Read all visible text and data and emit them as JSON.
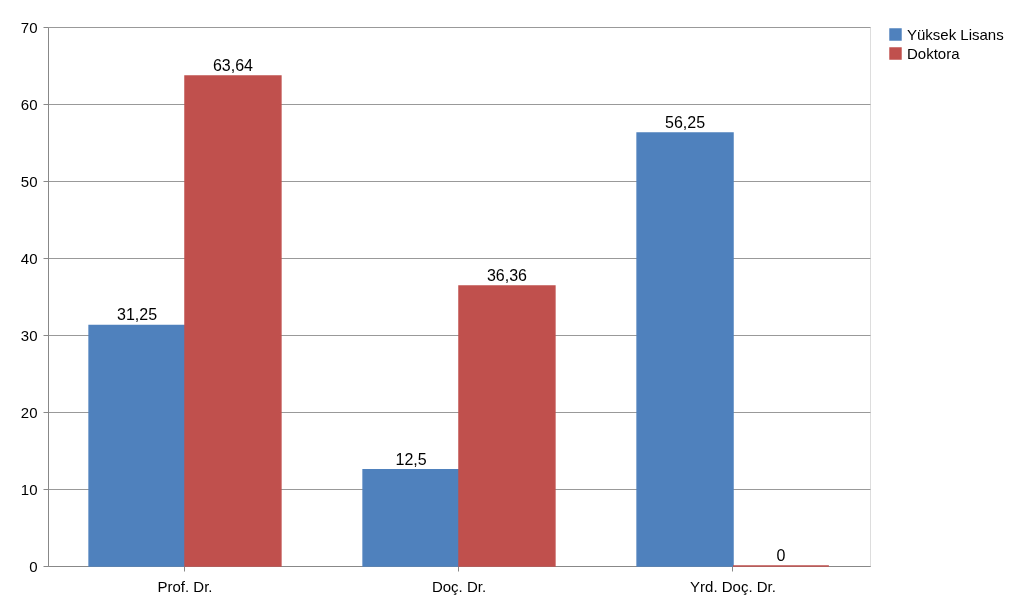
{
  "chart_data": {
    "type": "bar",
    "categories": [
      "Prof. Dr.",
      "Doç. Dr.",
      "Yrd. Doç. Dr."
    ],
    "series": [
      {
        "name": "Yüksek Lisans",
        "color": "#4f81bd",
        "values": [
          31.25,
          12.5,
          56.25
        ],
        "value_labels": [
          "31,25",
          "12,5",
          "56,25"
        ]
      },
      {
        "name": "Doktora",
        "color": "#c0504d",
        "values": [
          63.64,
          36.36,
          0
        ],
        "value_labels": [
          "63,64",
          "36,36",
          "0"
        ]
      }
    ],
    "ylim": [
      0,
      70
    ],
    "yticks": [
      0,
      10,
      20,
      30,
      40,
      50,
      60,
      70
    ],
    "grid": "y",
    "legend": "right"
  }
}
